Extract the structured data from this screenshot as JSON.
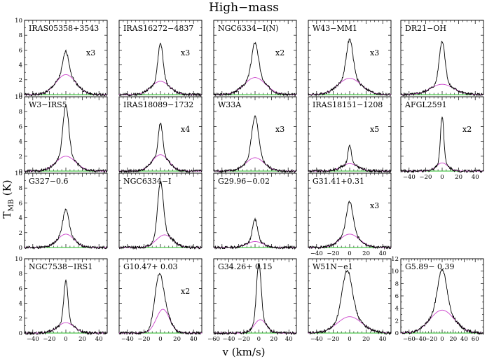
{
  "figure": {
    "title": "High−mass",
    "xlabel": "v  (km/s)",
    "ylabel_main": "T",
    "ylabel_sub": "MB",
    "ylabel_unit": "  (K)",
    "line_color": "#000000",
    "gaussian_color": "#cc44cc",
    "baseline_color": "#22bb22"
  },
  "chart_data": [
    {
      "type": "line",
      "source": "IRAS05358+3543",
      "multiplier": "x3",
      "xlim": [
        -50,
        50
      ],
      "ylim": [
        0,
        10
      ],
      "peak": 5.8,
      "gauss_amp": 2.7
    },
    {
      "type": "line",
      "source": "IRAS16272−4837",
      "multiplier": "x3",
      "xlim": [
        -50,
        50
      ],
      "ylim": [
        0,
        10
      ],
      "peak": 6.9,
      "gauss_amp": 1.8
    },
    {
      "type": "line",
      "source": "NGC6334−I(N)",
      "multiplier": "x2",
      "xlim": [
        -50,
        50
      ],
      "ylim": [
        0,
        10
      ],
      "peak": 7.0,
      "gauss_amp": 2.3
    },
    {
      "type": "line",
      "source": "W43−MM1",
      "multiplier": "x3",
      "xlim": [
        -50,
        50
      ],
      "ylim": [
        0,
        10
      ],
      "peak": 7.4,
      "gauss_amp": 2.2
    },
    {
      "type": "line",
      "source": "DR21−OH",
      "multiplier": "",
      "xlim": [
        -50,
        50
      ],
      "ylim": [
        0,
        10
      ],
      "peak": 7.2,
      "gauss_amp": 1.4
    },
    {
      "type": "line",
      "source": "W3−IRS5",
      "multiplier": "",
      "xlim": [
        -50,
        50
      ],
      "ylim": [
        0,
        10
      ],
      "peak": 8.8,
      "gauss_amp": 2.0
    },
    {
      "type": "line",
      "source": "IRAS18089−1732",
      "multiplier": "x4",
      "xlim": [
        -50,
        50
      ],
      "ylim": [
        0,
        10
      ],
      "peak": 6.5,
      "gauss_amp": 2.2
    },
    {
      "type": "line",
      "source": "W33A",
      "multiplier": "x3",
      "xlim": [
        -50,
        50
      ],
      "ylim": [
        0,
        10
      ],
      "peak": 7.3,
      "gauss_amp": 1.8
    },
    {
      "type": "line",
      "source": "IRAS18151−1208",
      "multiplier": "x5",
      "xlim": [
        -50,
        50
      ],
      "ylim": [
        0,
        10
      ],
      "peak": 3.5,
      "gauss_amp": 1.0
    },
    {
      "type": "line",
      "source": "AFGL2591",
      "multiplier": "x2",
      "xlim": [
        -50,
        50
      ],
      "ylim": [
        0,
        10
      ],
      "peak": 7.4,
      "gauss_amp": 1.1
    },
    {
      "type": "line",
      "source": "G327−0.6",
      "multiplier": "",
      "xlim": [
        -50,
        50
      ],
      "ylim": [
        0,
        10
      ],
      "peak": 5.1,
      "gauss_amp": 1.8
    },
    {
      "type": "line",
      "source": "NGC6334−I",
      "multiplier": "",
      "xlim": [
        -50,
        50
      ],
      "ylim": [
        0,
        10
      ],
      "peak": 9.0,
      "gauss_amp": 1.7
    },
    {
      "type": "line",
      "source": "G29.96−0.02",
      "multiplier": "",
      "xlim": [
        -50,
        50
      ],
      "ylim": [
        0,
        10
      ],
      "peak": 3.8,
      "gauss_amp": 0.8
    },
    {
      "type": "line",
      "source": "G31.41+0.31",
      "multiplier": "x3",
      "xlim": [
        -50,
        50
      ],
      "ylim": [
        0,
        10
      ],
      "peak": 6.1,
      "gauss_amp": 1.8
    },
    {
      "type": "line",
      "source": "NGC7538−IRS1",
      "multiplier": "",
      "xlim": [
        -50,
        50
      ],
      "ylim": [
        0,
        10
      ],
      "peak": 7.0,
      "gauss_amp": 1.4
    },
    {
      "type": "line",
      "source": "G10.47+  0.03",
      "multiplier": "x2",
      "xlim": [
        -50,
        50
      ],
      "ylim": [
        0,
        10
      ],
      "peak": 8.5,
      "gauss_amp": 3.2
    },
    {
      "type": "line",
      "source": "G34.26+  0.15",
      "multiplier": "",
      "xlim": [
        -60,
        50
      ],
      "ylim": [
        0,
        10
      ],
      "peak": 9.6,
      "gauss_amp": 1.8
    },
    {
      "type": "line",
      "source": "W51N−e1",
      "multiplier": "",
      "xlim": [
        -50,
        50
      ],
      "ylim": [
        0,
        10
      ],
      "peak": 8.5,
      "gauss_amp": 2.2
    },
    {
      "type": "line",
      "source": "G5.89−  0.39",
      "multiplier": "",
      "xlim": [
        -75,
        75
      ],
      "ylim": [
        0,
        12
      ],
      "peak": 10.3,
      "gauss_amp": 3.7
    }
  ]
}
